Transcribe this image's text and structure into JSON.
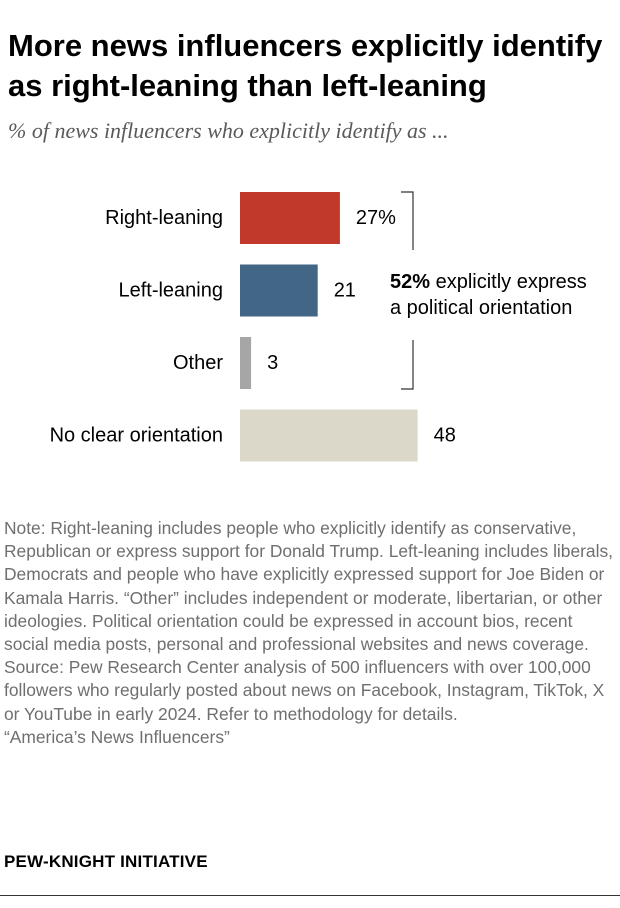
{
  "title": "More news influencers explicitly identify as right-leaning than left-leaning",
  "subtitle": "% of news influencers who explicitly identify as ...",
  "annotation": {
    "bold": "52%",
    "line1_rest": " explicitly express",
    "line2": "a political orientation"
  },
  "note": {
    "text": "Note: Right-leaning includes people who explicitly identify as conservative, Republican or express support for Donald Trump. Left-leaning includes liberals, Democrats and people who have explicitly expressed support for Joe Biden or Kamala Harris. “Other” includes independent or moderate, libertarian, or other ideologies. Political orientation could be expressed in account bios, recent social media posts, personal and professional websites and news coverage.",
    "source": "Source: Pew Research Center analysis of 500 influencers with over 100,000 followers who regularly posted about news on Facebook, Instagram, TikTok, X or YouTube in early 2024. Refer to methodology for details.",
    "report": "“America’s News Influencers”"
  },
  "brand": "PEW-KNIGHT INITIATIVE",
  "colors": {
    "right": "#c0392b",
    "left": "#426686",
    "other": "#a6a6a6",
    "none": "#dcd8c9"
  },
  "chart_data": {
    "type": "bar",
    "orientation": "horizontal",
    "title": "More news influencers explicitly identify as right-leaning than left-leaning",
    "subtitle": "% of news influencers who explicitly identify as ...",
    "categories": [
      "Right-leaning",
      "Left-leaning",
      "Other",
      "No clear orientation"
    ],
    "values": [
      27,
      21,
      3,
      48
    ],
    "value_labels": [
      "27%",
      "21",
      "3",
      "48"
    ],
    "xlim": [
      0,
      100
    ],
    "grid": false,
    "legend": "none",
    "annotation": "52% explicitly express a political orientation"
  }
}
